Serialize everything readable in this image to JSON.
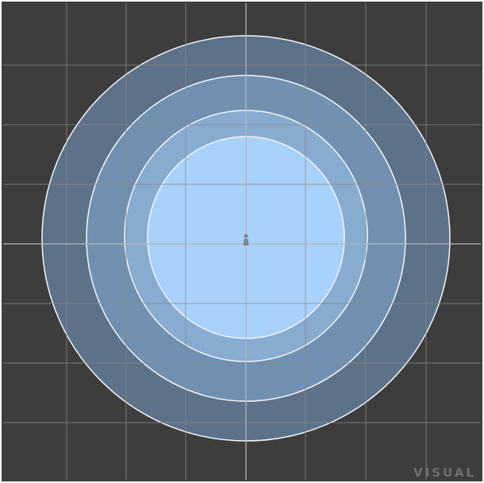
{
  "viewport": {
    "background": "#3d3d3d",
    "frame_color": "#ffffff",
    "grid_color": "#8a8a8a",
    "axis_color": "#b5b5b5",
    "grid_divisions": 8
  },
  "falloff_rings": {
    "outline_color": "#f2f6fb",
    "colors": [
      "#5d7189",
      "#7190b1",
      "#88abd0",
      "#a8d1fb"
    ]
  },
  "pivot_icon_color": "#7a8594",
  "watermark": {
    "text": "VISUAL",
    "color": "#6e6e6e"
  }
}
